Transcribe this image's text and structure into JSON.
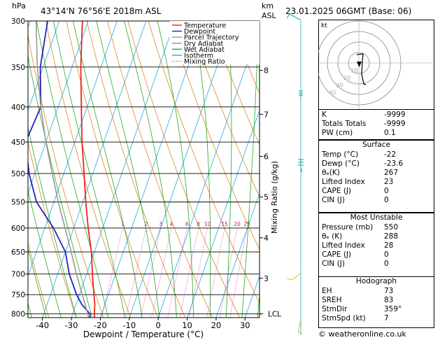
{
  "header": {
    "hpa_label": "hPa",
    "location": "43°14'N  76°56'E  2018m  ASL",
    "km_label": "km",
    "asl_label": "ASL",
    "timestamp": "23.01.2025  06GMT  (Base: 06)"
  },
  "chart_data": {
    "type": "line",
    "title": "",
    "xlabel": "Dewpoint / Temperature (°C)",
    "ylabel": "hPa",
    "right_ylabel": "Mixing Ratio (g/kg)",
    "xlim": [
      -45,
      35
    ],
    "ylim": [
      810,
      300
    ],
    "yscale": "log",
    "skew_deg_per_decade": 83,
    "x_ticks": [
      -40,
      -30,
      -20,
      -10,
      0,
      10,
      20,
      30
    ],
    "pressure_levels": [
      300,
      350,
      400,
      450,
      500,
      550,
      600,
      650,
      700,
      750,
      800
    ],
    "km_ticks": [
      {
        "label": "8",
        "p": 354
      },
      {
        "label": "7",
        "p": 410
      },
      {
        "label": "6",
        "p": 472
      },
      {
        "label": "5",
        "p": 541
      },
      {
        "label": "4",
        "p": 620
      },
      {
        "label": "3",
        "p": 710
      }
    ],
    "lcl": {
      "label": "LCL",
      "p": 800
    },
    "mixing_ratio_labels": [
      "1",
      "2",
      "3",
      "4",
      "6",
      "8",
      "10",
      "15",
      "20",
      "25"
    ],
    "mixing_ratio_values": [
      1,
      2,
      3,
      4,
      6,
      8,
      10,
      15,
      20,
      25
    ],
    "mixing_ratio_label_p": 600,
    "legend": {
      "placement": "top-right",
      "entries": [
        {
          "label": "Temperature",
          "color": "#ee2222",
          "style": "solid"
        },
        {
          "label": "Dewpoint",
          "color": "#2222bb",
          "style": "solid"
        },
        {
          "label": "Parcel Trajectory",
          "color": "#999999",
          "style": "solid"
        },
        {
          "label": "Dry Adiabat",
          "color": "#dd8822",
          "style": "solid"
        },
        {
          "label": "Wet Adiabat",
          "color": "#22aa22",
          "style": "solid"
        },
        {
          "label": "Isotherm",
          "color": "#22aadd",
          "style": "solid"
        },
        {
          "label": "Mixing Ratio",
          "color": "#dd22aa",
          "style": "dotted"
        }
      ]
    },
    "series": [
      {
        "name": "Temperature",
        "color": "#ee2222",
        "points": [
          [
            810,
            -22
          ],
          [
            800,
            -22.5
          ],
          [
            775,
            -23.5
          ],
          [
            750,
            -25
          ],
          [
            700,
            -28
          ],
          [
            650,
            -31
          ],
          [
            600,
            -35
          ],
          [
            550,
            -39
          ],
          [
            500,
            -43
          ],
          [
            450,
            -47.5
          ],
          [
            400,
            -52
          ],
          [
            350,
            -57
          ],
          [
            300,
            -62
          ]
        ]
      },
      {
        "name": "Dewpoint",
        "color": "#2222bb",
        "points": [
          [
            810,
            -23.6
          ],
          [
            800,
            -24
          ],
          [
            775,
            -28
          ],
          [
            750,
            -31
          ],
          [
            700,
            -36
          ],
          [
            650,
            -40
          ],
          [
            600,
            -47
          ],
          [
            550,
            -56
          ],
          [
            500,
            -62
          ],
          [
            450,
            -67
          ],
          [
            400,
            -66
          ],
          [
            350,
            -71
          ],
          [
            300,
            -74
          ]
        ]
      },
      {
        "name": "Parcel Trajectory",
        "color": "#999999",
        "points": [
          [
            810,
            -24
          ],
          [
            750,
            -29
          ],
          [
            700,
            -33.5
          ],
          [
            650,
            -38
          ],
          [
            600,
            -43
          ],
          [
            550,
            -48.5
          ],
          [
            500,
            -54
          ],
          [
            450,
            -60
          ],
          [
            400,
            -66
          ],
          [
            350,
            -72
          ],
          [
            300,
            -78
          ]
        ]
      }
    ]
  },
  "hodograph": {
    "unit_label": "kt",
    "ring_labels": [
      "10",
      "20",
      "30",
      "40"
    ]
  },
  "indices": {
    "rows": [
      {
        "key": "K",
        "value": "-9999"
      },
      {
        "key": "Totals Totals",
        "value": "-9999"
      },
      {
        "key": "PW (cm)",
        "value": "0.1"
      }
    ]
  },
  "surface": {
    "title": "Surface",
    "rows": [
      {
        "key": "Temp (°C)",
        "value": "-22"
      },
      {
        "key": "Dewp (°C)",
        "value": "-23.6"
      },
      {
        "key": "θₑ(K)",
        "value": "267"
      },
      {
        "key": "Lifted Index",
        "value": "23"
      },
      {
        "key": "CAPE (J)",
        "value": "0"
      },
      {
        "key": "CIN (J)",
        "value": "0"
      }
    ]
  },
  "most_unstable": {
    "title": "Most Unstable",
    "rows": [
      {
        "key": "Pressure (mb)",
        "value": "550"
      },
      {
        "key": "θₑ (K)",
        "value": "288"
      },
      {
        "key": "Lifted Index",
        "value": "28"
      },
      {
        "key": "CAPE (J)",
        "value": "0"
      },
      {
        "key": "CIN (J)",
        "value": "0"
      }
    ]
  },
  "hodograph_stats": {
    "title": "Hodograph",
    "rows": [
      {
        "key": "EH",
        "value": "73"
      },
      {
        "key": "SREH",
        "value": "83"
      },
      {
        "key": "StmDir",
        "value": "359°"
      },
      {
        "key": "StmSpd (kt)",
        "value": "7"
      }
    ]
  },
  "footer": {
    "credit": "© weatheronline.co.uk"
  }
}
